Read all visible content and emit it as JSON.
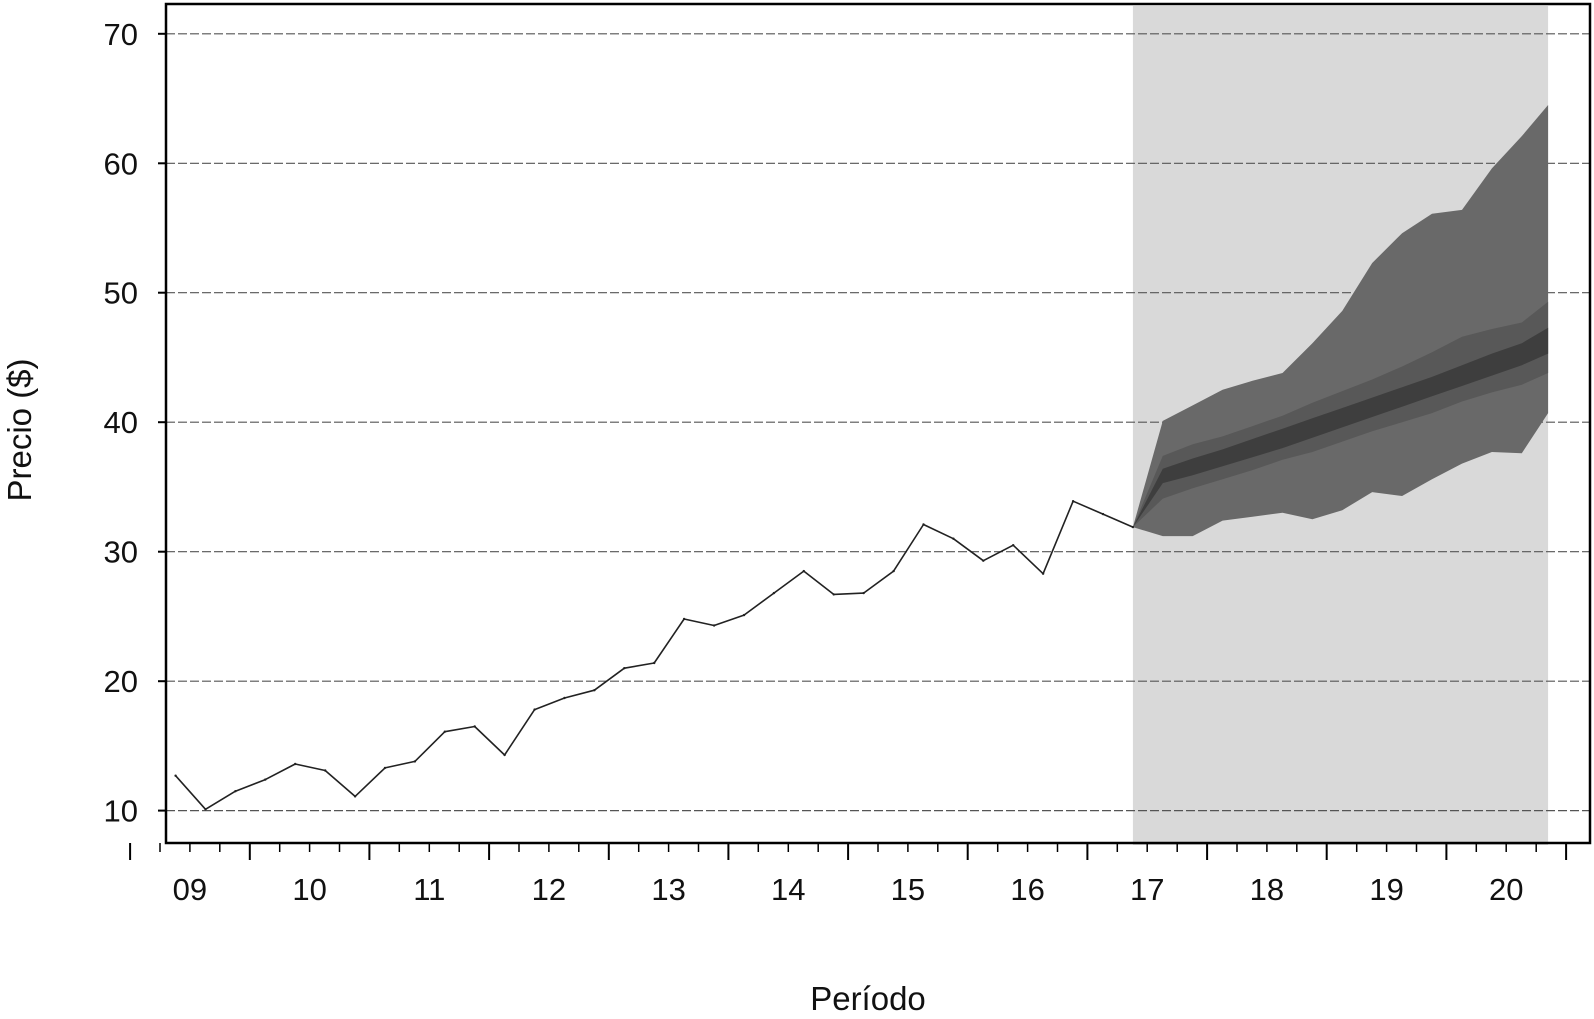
{
  "chart_data": {
    "type": "line",
    "title": "",
    "xlabel": "Período",
    "ylabel": "Precio ($)",
    "ylim": [
      7.5,
      72.3
    ],
    "xlim": [
      2008.8,
      2020.7
    ],
    "grid": "horizontal dashed",
    "y_ticks": [
      10,
      20,
      30,
      40,
      50,
      60,
      70
    ],
    "x_tick_labels": [
      {
        "value": 2009.0,
        "label": "09"
      },
      {
        "value": 2010.0,
        "label": "10"
      },
      {
        "value": 2011.0,
        "label": "11"
      },
      {
        "value": 2012.0,
        "label": "12"
      },
      {
        "value": 2013.0,
        "label": "13"
      },
      {
        "value": 2014.0,
        "label": "14"
      },
      {
        "value": 2015.0,
        "label": "15"
      },
      {
        "value": 2016.0,
        "label": "16"
      },
      {
        "value": 2017.0,
        "label": "17"
      },
      {
        "value": 2018.0,
        "label": "18"
      },
      {
        "value": 2019.0,
        "label": "19"
      },
      {
        "value": 2020.0,
        "label": "20"
      }
    ],
    "forecast_region": [
      2016.88,
      2020.35
    ],
    "colors": {
      "line": "#222222",
      "forecast_bg": "#d9d9d9",
      "band_outer": "#696969",
      "band_mid": "#585858",
      "band_inner": "#3e3e3e",
      "grid": "#555555"
    },
    "series": [
      {
        "values": [
          [
            2008.88,
            12.7
          ],
          [
            2009.13,
            10.1
          ],
          [
            2009.38,
            11.5
          ],
          [
            2009.63,
            12.4
          ],
          [
            2009.88,
            13.6
          ],
          [
            2010.13,
            13.1
          ],
          [
            2010.38,
            11.1
          ],
          [
            2010.63,
            13.3
          ],
          [
            2010.88,
            13.8
          ],
          [
            2011.13,
            16.1
          ],
          [
            2011.38,
            16.5
          ],
          [
            2011.63,
            14.3
          ],
          [
            2011.88,
            17.8
          ],
          [
            2012.13,
            18.7
          ],
          [
            2012.38,
            19.3
          ],
          [
            2012.63,
            21.0
          ],
          [
            2012.88,
            21.4
          ],
          [
            2013.13,
            24.8
          ],
          [
            2013.38,
            24.3
          ],
          [
            2013.63,
            25.1
          ],
          [
            2013.88,
            26.8
          ],
          [
            2014.13,
            28.5
          ],
          [
            2014.38,
            26.7
          ],
          [
            2014.63,
            26.8
          ],
          [
            2014.88,
            28.5
          ],
          [
            2015.13,
            32.1
          ],
          [
            2015.38,
            31.0
          ],
          [
            2015.63,
            29.3
          ],
          [
            2015.88,
            30.5
          ],
          [
            2016.13,
            28.3
          ],
          [
            2016.38,
            33.9
          ],
          [
            2016.63,
            32.9
          ],
          [
            2016.88,
            31.9
          ]
        ]
      }
    ],
    "forecast_bands": [
      {
        "name": "outer",
        "x": [
          2016.88,
          2017.13,
          2017.38,
          2017.63,
          2017.88,
          2018.13,
          2018.38,
          2018.63,
          2018.88,
          2019.13,
          2019.38,
          2019.63,
          2019.88,
          2020.13,
          2020.35
        ],
        "upper": [
          31.9,
          40.1,
          41.3,
          42.5,
          43.2,
          43.8,
          46.1,
          48.6,
          52.3,
          54.6,
          56.1,
          56.4,
          59.6,
          62.1,
          64.5
        ],
        "lower": [
          31.9,
          31.2,
          31.2,
          32.4,
          32.7,
          33.0,
          32.5,
          33.2,
          34.6,
          34.3,
          35.6,
          36.8,
          37.7,
          37.6,
          40.7
        ]
      },
      {
        "name": "middle",
        "x": [
          2016.88,
          2017.13,
          2017.38,
          2017.63,
          2017.88,
          2018.13,
          2018.38,
          2018.63,
          2018.88,
          2019.13,
          2019.38,
          2019.63,
          2019.88,
          2020.13,
          2020.35
        ],
        "upper": [
          31.9,
          37.4,
          38.3,
          38.9,
          39.7,
          40.5,
          41.5,
          42.4,
          43.3,
          44.3,
          45.4,
          46.6,
          47.2,
          47.7,
          49.3
        ],
        "lower": [
          31.9,
          34.1,
          34.9,
          35.6,
          36.3,
          37.1,
          37.7,
          38.5,
          39.3,
          40.0,
          40.7,
          41.6,
          42.3,
          42.9,
          43.8
        ]
      },
      {
        "name": "inner",
        "x": [
          2016.88,
          2017.13,
          2017.38,
          2017.63,
          2017.88,
          2018.13,
          2018.38,
          2018.63,
          2018.88,
          2019.13,
          2019.38,
          2019.63,
          2019.88,
          2020.13,
          2020.35
        ],
        "upper": [
          31.9,
          36.4,
          37.2,
          37.9,
          38.7,
          39.5,
          40.3,
          41.1,
          41.9,
          42.7,
          43.5,
          44.4,
          45.3,
          46.1,
          47.3
        ],
        "lower": [
          31.9,
          35.3,
          35.9,
          36.6,
          37.3,
          38.0,
          38.8,
          39.6,
          40.4,
          41.2,
          42.0,
          42.8,
          43.6,
          44.4,
          45.3
        ]
      }
    ]
  }
}
